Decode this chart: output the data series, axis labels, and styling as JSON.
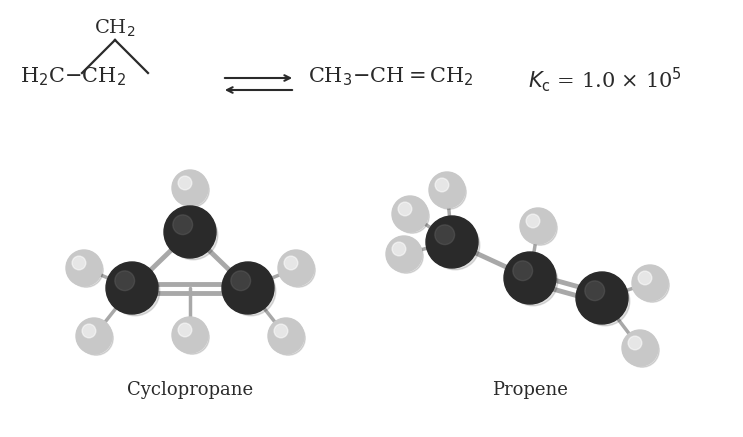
{
  "background_color": "#ffffff",
  "label_cyclopropane": "Cyclopropane",
  "label_propene": "Propene",
  "fig_width": 7.43,
  "fig_height": 4.37,
  "dpi": 100,
  "carbon_color": "#2a2a2a",
  "hydrogen_color": "#c8c8c8",
  "bond_color": "#a8a8a8",
  "text_color": "#2a2a2a",
  "eq_text_color": "#3a3a3a"
}
